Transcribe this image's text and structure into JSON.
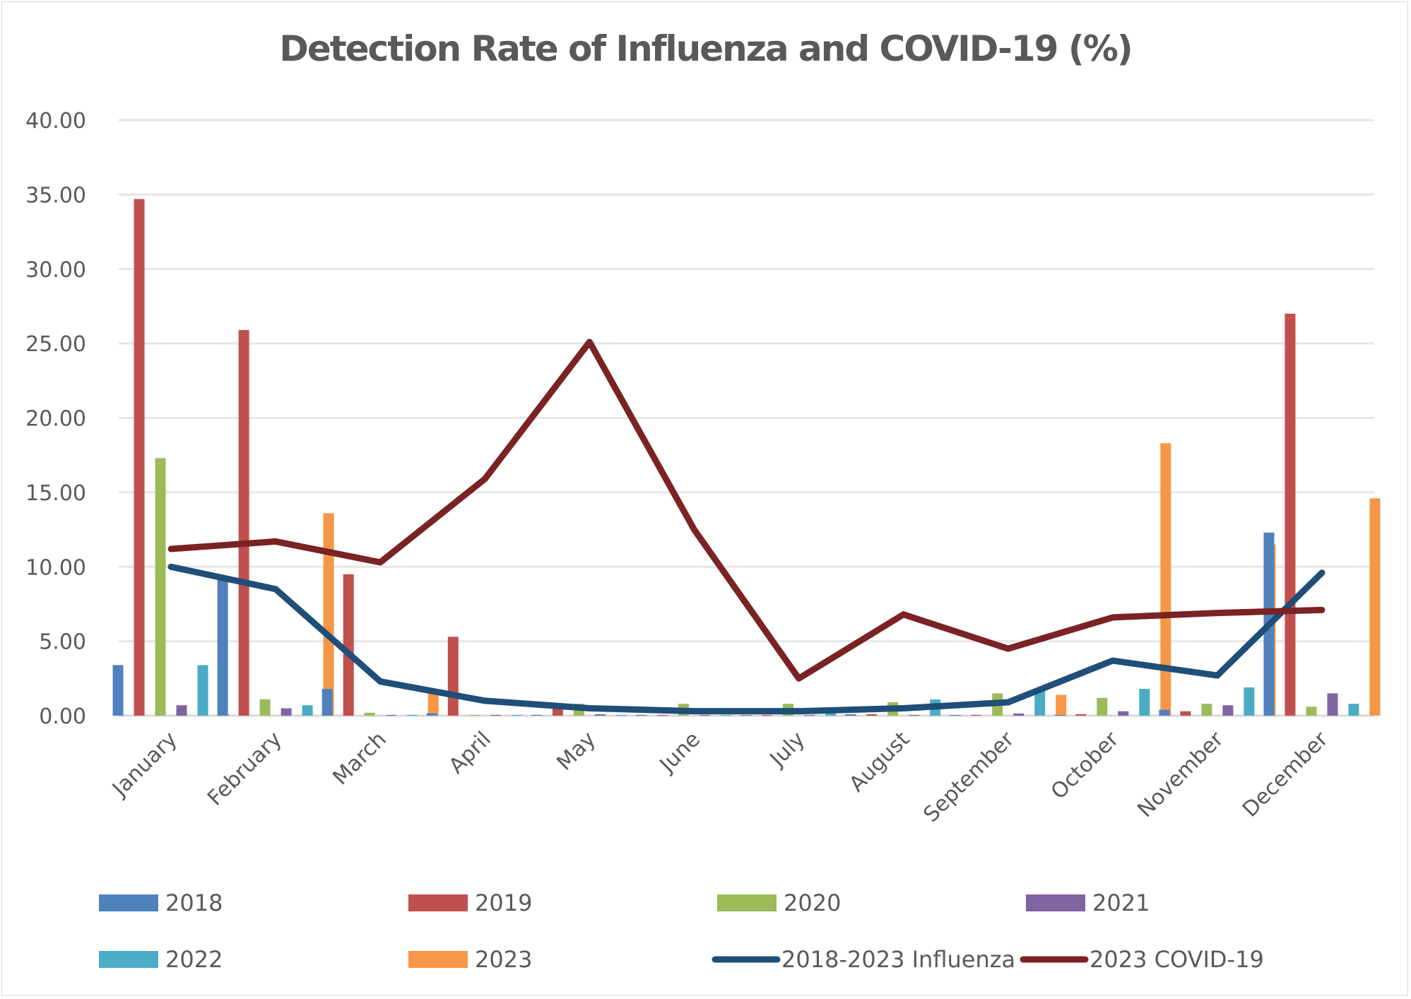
{
  "chart_data": {
    "type": "bar",
    "title": "Detection Rate of Influenza and COVID-19 (%)",
    "xlabel": "",
    "ylabel": "",
    "ylim": [
      0,
      40
    ],
    "yticks": [
      "0.00",
      "5.00",
      "10.00",
      "15.00",
      "20.00",
      "25.00",
      "30.00",
      "35.00",
      "40.00"
    ],
    "ytick_values": [
      0,
      5,
      10,
      15,
      20,
      25,
      30,
      35,
      40
    ],
    "grid": true,
    "legend_position": "bottom",
    "categories": [
      "January",
      "February",
      "March",
      "April",
      "May",
      "June",
      "July",
      "August",
      "September",
      "October",
      "November",
      "December"
    ],
    "series": [
      {
        "name": "2018",
        "kind": "bar",
        "color": "#4f81bd",
        "values": [
          3.4,
          9.4,
          1.8,
          0.15,
          0.05,
          0.05,
          0.05,
          0.1,
          0.05,
          0.05,
          0.4,
          12.3
        ]
      },
      {
        "name": "2019",
        "kind": "bar",
        "color": "#c0504d",
        "values": [
          34.7,
          25.9,
          9.5,
          5.3,
          0.8,
          0.05,
          0.05,
          0.1,
          0.05,
          0.1,
          0.3,
          27.0
        ]
      },
      {
        "name": "2020",
        "kind": "bar",
        "color": "#9bbb59",
        "values": [
          17.3,
          1.1,
          0.2,
          0.05,
          0.8,
          0.8,
          0.8,
          0.9,
          1.5,
          1.2,
          0.8,
          0.6
        ]
      },
      {
        "name": "2021",
        "kind": "bar",
        "color": "#8064a2",
        "values": [
          0.7,
          0.5,
          0.05,
          0.05,
          0.1,
          0.05,
          0.05,
          0.05,
          0.15,
          0.3,
          0.7,
          1.5
        ]
      },
      {
        "name": "2022",
        "kind": "bar",
        "color": "#4bacc6",
        "values": [
          3.4,
          0.7,
          0.05,
          0.05,
          0.05,
          0.05,
          0.5,
          1.1,
          1.7,
          1.8,
          1.9,
          0.8
        ]
      },
      {
        "name": "2023",
        "kind": "bar",
        "color": "#f79646",
        "values": [
          0.1,
          13.6,
          1.8,
          0.05,
          0.05,
          0.05,
          0.05,
          0.05,
          1.4,
          18.3,
          11.5,
          14.6
        ]
      },
      {
        "name": "2018-2023 Influenza",
        "kind": "line",
        "color": "#1f4e79",
        "values": [
          10.0,
          8.5,
          2.3,
          1.0,
          0.5,
          0.3,
          0.3,
          0.5,
          0.9,
          3.7,
          2.7,
          9.6
        ]
      },
      {
        "name": "2023 COVID-19",
        "kind": "line",
        "color": "#7b2224",
        "values": [
          11.2,
          11.7,
          10.3,
          15.9,
          25.1,
          12.5,
          2.5,
          6.8,
          4.5,
          6.6,
          6.9,
          7.1
        ]
      }
    ]
  }
}
